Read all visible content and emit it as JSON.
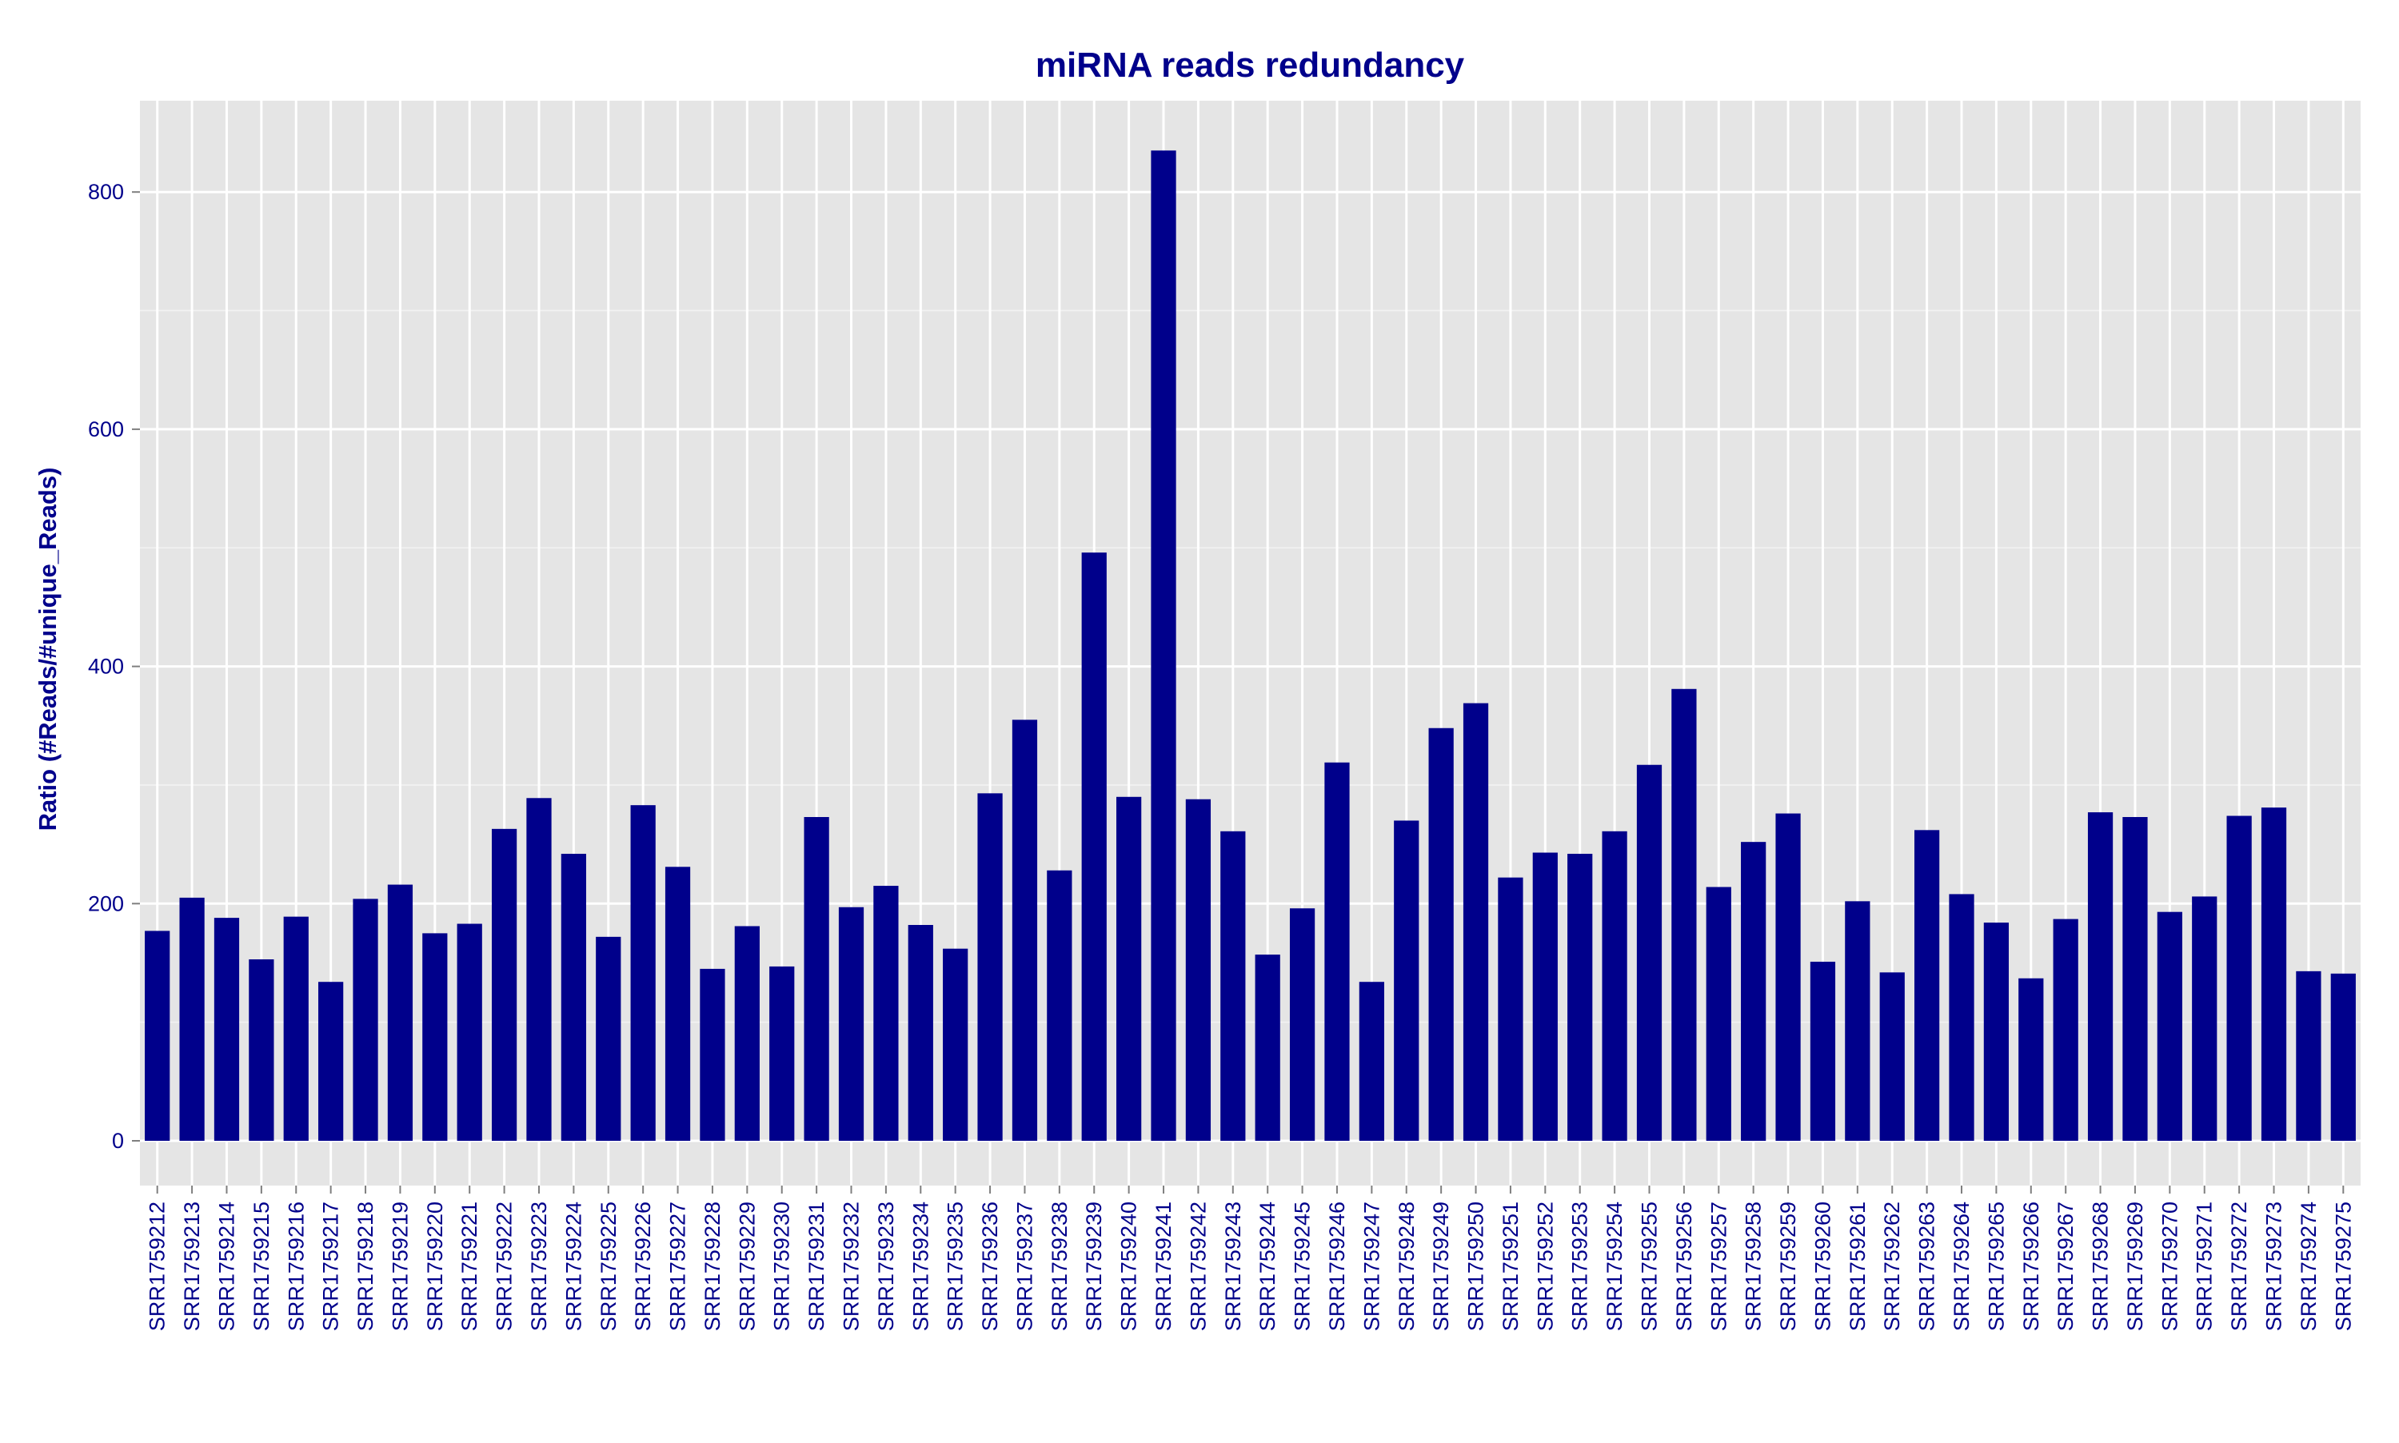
{
  "chart_data": {
    "type": "bar",
    "title": "miRNA reads redundancy",
    "xlabel": "",
    "ylabel": "Ratio (#Reads/#unique_Reads)",
    "ylim": [
      -50,
      870
    ],
    "yticks": [
      0,
      200,
      400,
      600,
      800
    ],
    "grid": true,
    "legend": "none",
    "categories": [
      "SRR1759212",
      "SRR1759213",
      "SRR1759214",
      "SRR1759215",
      "SRR1759216",
      "SRR1759217",
      "SRR1759218",
      "SRR1759219",
      "SRR1759220",
      "SRR1759221",
      "SRR1759222",
      "SRR1759223",
      "SRR1759224",
      "SRR1759225",
      "SRR1759226",
      "SRR1759227",
      "SRR1759228",
      "SRR1759229",
      "SRR1759230",
      "SRR1759231",
      "SRR1759232",
      "SRR1759233",
      "SRR1759234",
      "SRR1759235",
      "SRR1759236",
      "SRR1759237",
      "SRR1759238",
      "SRR1759239",
      "SRR1759240",
      "SRR1759241",
      "SRR1759242",
      "SRR1759243",
      "SRR1759244",
      "SRR1759245",
      "SRR1759246",
      "SRR1759247",
      "SRR1759248",
      "SRR1759249",
      "SRR1759250",
      "SRR1759251",
      "SRR1759252",
      "SRR1759253",
      "SRR1759254",
      "SRR1759255",
      "SRR1759256",
      "SRR1759257",
      "SRR1759258",
      "SRR1759259",
      "SRR1759260",
      "SRR1759261",
      "SRR1759262",
      "SRR1759263",
      "SRR1759264",
      "SRR1759265",
      "SRR1759266",
      "SRR1759267",
      "SRR1759268",
      "SRR1759269",
      "SRR1759270",
      "SRR1759271",
      "SRR1759272",
      "SRR1759273",
      "SRR1759274",
      "SRR1759275"
    ],
    "values": [
      177,
      205,
      188,
      153,
      189,
      134,
      204,
      216,
      175,
      183,
      263,
      289,
      242,
      172,
      283,
      231,
      145,
      181,
      147,
      273,
      197,
      215,
      182,
      162,
      293,
      355,
      228,
      496,
      290,
      835,
      288,
      261,
      157,
      196,
      319,
      134,
      270,
      348,
      369,
      222,
      243,
      242,
      261,
      317,
      381,
      214,
      252,
      276,
      151,
      202,
      142,
      262,
      208,
      184,
      137,
      187,
      277,
      273,
      193,
      206,
      274,
      281,
      143,
      141
    ]
  },
  "colors": {
    "bar": "#00008b",
    "panel": "#e5e5e5",
    "grid_major": "#ffffff",
    "grid_minor": "#f2f2f2",
    "text": "#00008b"
  }
}
